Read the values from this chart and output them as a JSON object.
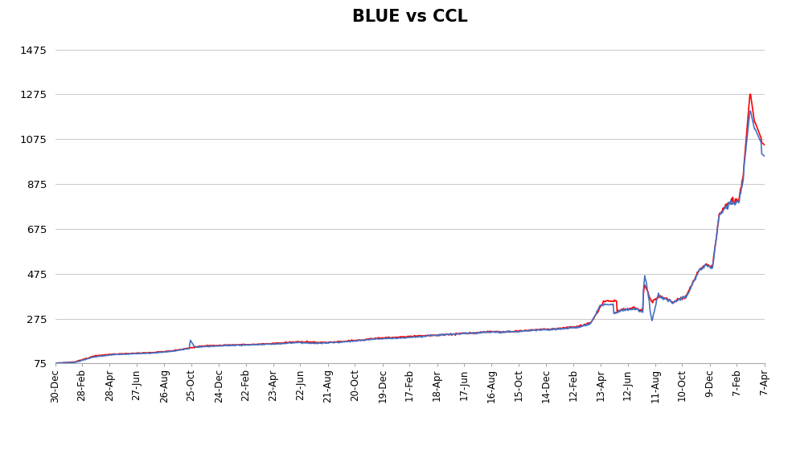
{
  "title": "BLUE vs CCL",
  "title_fontsize": 15,
  "title_fontweight": "bold",
  "background_color": "#ffffff",
  "grid_color": "#cccccc",
  "blue_color": "#4472C4",
  "ccl_color": "#FF0000",
  "line_width": 1.2,
  "ylim": [
    75,
    1550
  ],
  "yticks": [
    75,
    275,
    475,
    675,
    875,
    1075,
    1275,
    1475
  ],
  "x_labels": [
    "30-Dec",
    "28-Feb",
    "28-Apr",
    "27-Jun",
    "26-Aug",
    "25-Oct",
    "24-Dec",
    "22-Feb",
    "23-Apr",
    "22-Jun",
    "21-Aug",
    "20-Oct",
    "19-Dec",
    "17-Feb",
    "18-Apr",
    "17-Jun",
    "16-Aug",
    "15-Oct",
    "14-Dec",
    "12-Feb",
    "13-Apr",
    "12-Jun",
    "11-Aug",
    "10-Oct",
    "9-Dec",
    "7-Feb",
    "7-Apr"
  ],
  "key_x_blue": [
    0,
    30,
    60,
    90,
    120,
    150,
    180,
    220,
    260,
    300,
    340,
    370,
    400,
    430,
    460,
    490,
    510,
    530,
    550,
    580,
    610,
    640,
    660,
    680,
    700,
    720,
    740,
    760,
    780,
    800,
    820,
    840,
    860,
    880,
    895,
    910,
    920,
    930,
    940,
    950,
    960,
    970,
    980,
    990,
    1000,
    1010,
    1020,
    1030,
    1040,
    1050,
    1060,
    1070,
    1079
  ],
  "key_y_blue": [
    76,
    80,
    105,
    115,
    118,
    122,
    130,
    150,
    155,
    158,
    163,
    170,
    165,
    170,
    178,
    185,
    188,
    190,
    195,
    200,
    205,
    210,
    215,
    215,
    218,
    222,
    225,
    228,
    232,
    240,
    260,
    290,
    310,
    320,
    305,
    350,
    370,
    360,
    345,
    360,
    370,
    430,
    490,
    510,
    500,
    730,
    770,
    790,
    790,
    950,
    1000,
    1040,
    1010
  ],
  "key_x_ccl": [
    0,
    30,
    60,
    90,
    120,
    150,
    180,
    220,
    260,
    300,
    340,
    370,
    400,
    430,
    460,
    490,
    510,
    530,
    550,
    580,
    610,
    640,
    660,
    680,
    700,
    720,
    740,
    760,
    780,
    800,
    820,
    840,
    860,
    880,
    895,
    910,
    920,
    930,
    940,
    950,
    960,
    970,
    980,
    990,
    1000,
    1010,
    1020,
    1030,
    1040,
    1050,
    1060,
    1070,
    1079
  ],
  "key_y_ccl": [
    76,
    82,
    108,
    117,
    120,
    124,
    132,
    152,
    157,
    160,
    165,
    172,
    167,
    172,
    180,
    187,
    190,
    192,
    197,
    202,
    207,
    212,
    217,
    217,
    220,
    224,
    227,
    230,
    235,
    243,
    263,
    295,
    315,
    325,
    308,
    355,
    375,
    365,
    348,
    363,
    373,
    435,
    495,
    515,
    505,
    735,
    775,
    800,
    800,
    960,
    1080,
    1270,
    1060
  ]
}
